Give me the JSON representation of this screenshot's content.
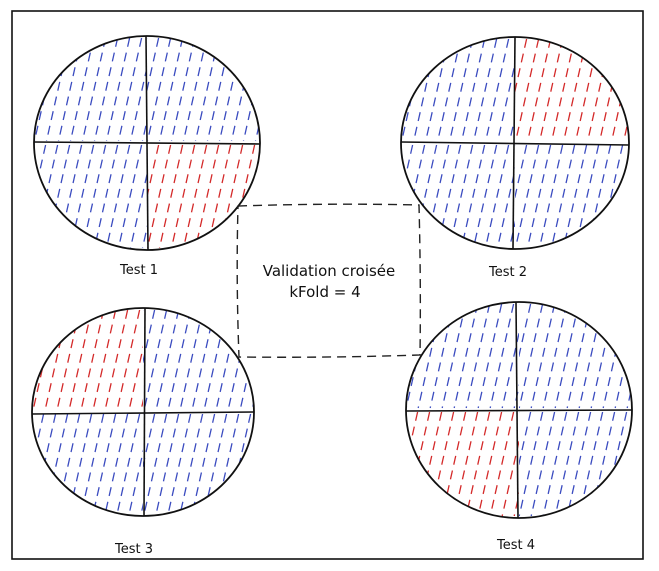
{
  "diagram": {
    "title_line1": "Validation croisée",
    "title_line2": "kFold = 4",
    "tests": [
      {
        "label": "Test 1",
        "test_quadrant": "bottom-right"
      },
      {
        "label": "Test 2",
        "test_quadrant": "top-right"
      },
      {
        "label": "Test 3",
        "test_quadrant": "top-left"
      },
      {
        "label": "Test 4",
        "test_quadrant": "bottom-left"
      }
    ],
    "colors": {
      "train": "#3b4cc0",
      "test": "#d42a2a",
      "stroke": "#111111",
      "border": "#111111"
    }
  }
}
